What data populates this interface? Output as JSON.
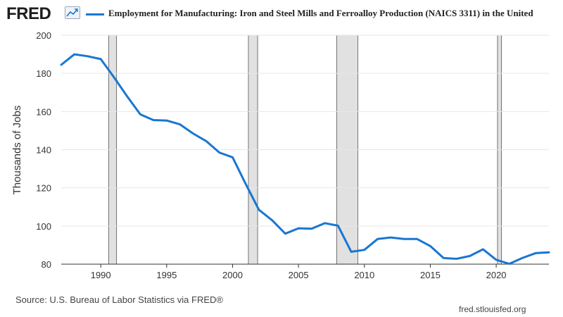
{
  "header": {
    "logo_text": "FRED",
    "title": "Employment for Manufacturing: Iron and Steel Mills and Ferroalloy Production (NAICS 3311) in the United"
  },
  "footer": {
    "source": "Source: U.S. Bureau of Labor Statistics via FRED®",
    "site": "fred.stlouisfed.org"
  },
  "colors": {
    "line": "#1976d2",
    "recession": "#e1e1e1",
    "grid": "#e6e6e6"
  },
  "chart_data": {
    "type": "line",
    "title": "Employment for Manufacturing: Iron and Steel Mills and Ferroalloy Production (NAICS 3311) in the United",
    "xlabel": "",
    "ylabel": "Thousands of Jobs",
    "xlim": [
      1987,
      2024
    ],
    "ylim": [
      80,
      200
    ],
    "x_ticks": [
      1990,
      1995,
      2000,
      2005,
      2010,
      2015,
      2020
    ],
    "y_ticks": [
      80,
      100,
      120,
      140,
      160,
      180,
      200
    ],
    "grid": true,
    "recessions": [
      [
        1990.6,
        1991.2
      ],
      [
        2001.2,
        2001.9
      ],
      [
        2007.9,
        2009.5
      ],
      [
        2020.1,
        2020.4
      ]
    ],
    "series": [
      {
        "x": [
          1987,
          1988,
          1989,
          1990,
          1991,
          1992,
          1993,
          1994,
          1995,
          1996,
          1997,
          1998,
          1999,
          2000,
          2001,
          2002,
          2003,
          2004,
          2005,
          2006,
          2007,
          2008,
          2009,
          2010,
          2011,
          2012,
          2013,
          2014,
          2015,
          2016,
          2017,
          2018,
          2019,
          2020,
          2021,
          2022,
          2023,
          2024
        ],
        "values": [
          184.5,
          190,
          189,
          187.5,
          178,
          168,
          158.5,
          155.5,
          155.3,
          153.3,
          148.5,
          144.5,
          138.5,
          136,
          122,
          108.5,
          103,
          96,
          98.8,
          98.6,
          101.5,
          100.2,
          86.5,
          87.5,
          93.2,
          94,
          93.2,
          93.2,
          89.5,
          83.2,
          82.8,
          84.3,
          87.8,
          82.3,
          80.2,
          83.3,
          85.8,
          86.2
        ]
      }
    ]
  }
}
